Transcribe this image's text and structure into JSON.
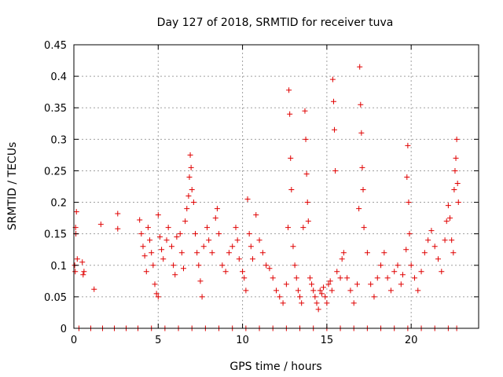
{
  "chart_data": {
    "type": "scatter",
    "title": "Day 127 of 2018, SRMTID for receiver tuva",
    "xlabel": "GPS time / hours",
    "ylabel": "SRMTID / TECUs",
    "xlim": [
      0,
      24
    ],
    "ylim": [
      0,
      0.45
    ],
    "xticks": [
      0,
      5,
      10,
      15,
      20
    ],
    "yticks": [
      0,
      0.05,
      0.1,
      0.15,
      0.2,
      0.25,
      0.3,
      0.35,
      0.4,
      0.45
    ],
    "ytick_labels": [
      "0",
      "0.05",
      "0.1",
      "0.15",
      "0.2",
      "0.25",
      "0.3",
      "0.35",
      "0.4",
      "0.45"
    ],
    "grid": true,
    "marker": "+",
    "color": "#e00000",
    "series": [
      {
        "name": "tuva",
        "points": [
          [
            0.05,
            0.1
          ],
          [
            0.08,
            0.09
          ],
          [
            0.1,
            0.16
          ],
          [
            0.12,
            0.15
          ],
          [
            0.15,
            0.185
          ],
          [
            0.2,
            0.11
          ],
          [
            0.5,
            0.105
          ],
          [
            0.55,
            0.085
          ],
          [
            0.6,
            0.09
          ],
          [
            1.2,
            0.062
          ],
          [
            1.6,
            0.165
          ],
          [
            2.6,
            0.182
          ],
          [
            2.6,
            0.158
          ],
          [
            3.9,
            0.172
          ],
          [
            4.0,
            0.15
          ],
          [
            4.1,
            0.13
          ],
          [
            4.2,
            0.115
          ],
          [
            4.3,
            0.09
          ],
          [
            4.4,
            0.16
          ],
          [
            4.5,
            0.14
          ],
          [
            4.6,
            0.12
          ],
          [
            4.7,
            0.1
          ],
          [
            4.8,
            0.07
          ],
          [
            4.9,
            0.055
          ],
          [
            5.0,
            0.05
          ],
          [
            5.0,
            0.18
          ],
          [
            5.1,
            0.145
          ],
          [
            5.2,
            0.125
          ],
          [
            5.3,
            0.11
          ],
          [
            5.5,
            0.14
          ],
          [
            5.6,
            0.16
          ],
          [
            5.8,
            0.13
          ],
          [
            5.9,
            0.1
          ],
          [
            6.0,
            0.085
          ],
          [
            6.1,
            0.145
          ],
          [
            6.3,
            0.15
          ],
          [
            6.4,
            0.12
          ],
          [
            6.5,
            0.095
          ],
          [
            6.6,
            0.17
          ],
          [
            6.7,
            0.19
          ],
          [
            6.8,
            0.21
          ],
          [
            6.85,
            0.24
          ],
          [
            6.9,
            0.275
          ],
          [
            6.95,
            0.255
          ],
          [
            7.0,
            0.22
          ],
          [
            7.1,
            0.2
          ],
          [
            7.2,
            0.15
          ],
          [
            7.3,
            0.12
          ],
          [
            7.4,
            0.1
          ],
          [
            7.5,
            0.075
          ],
          [
            7.6,
            0.05
          ],
          [
            7.7,
            0.13
          ],
          [
            7.9,
            0.16
          ],
          [
            8.0,
            0.14
          ],
          [
            8.2,
            0.12
          ],
          [
            8.4,
            0.175
          ],
          [
            8.5,
            0.19
          ],
          [
            8.6,
            0.15
          ],
          [
            8.8,
            0.1
          ],
          [
            9.0,
            0.09
          ],
          [
            9.2,
            0.12
          ],
          [
            9.4,
            0.13
          ],
          [
            9.6,
            0.16
          ],
          [
            9.7,
            0.14
          ],
          [
            9.8,
            0.11
          ],
          [
            10.0,
            0.09
          ],
          [
            10.1,
            0.08
          ],
          [
            10.2,
            0.06
          ],
          [
            10.3,
            0.205
          ],
          [
            10.4,
            0.15
          ],
          [
            10.5,
            0.13
          ],
          [
            10.6,
            0.11
          ],
          [
            10.8,
            0.18
          ],
          [
            11.0,
            0.14
          ],
          [
            11.2,
            0.12
          ],
          [
            11.4,
            0.1
          ],
          [
            11.6,
            0.095
          ],
          [
            11.8,
            0.08
          ],
          [
            12.0,
            0.06
          ],
          [
            12.2,
            0.05
          ],
          [
            12.4,
            0.04
          ],
          [
            12.6,
            0.07
          ],
          [
            12.7,
            0.16
          ],
          [
            12.75,
            0.378
          ],
          [
            12.8,
            0.34
          ],
          [
            12.85,
            0.27
          ],
          [
            12.9,
            0.22
          ],
          [
            13.0,
            0.13
          ],
          [
            13.1,
            0.1
          ],
          [
            13.2,
            0.08
          ],
          [
            13.3,
            0.06
          ],
          [
            13.4,
            0.05
          ],
          [
            13.5,
            0.04
          ],
          [
            13.6,
            0.16
          ],
          [
            13.7,
            0.345
          ],
          [
            13.75,
            0.3
          ],
          [
            13.8,
            0.245
          ],
          [
            13.85,
            0.2
          ],
          [
            13.9,
            0.17
          ],
          [
            14.0,
            0.08
          ],
          [
            14.1,
            0.07
          ],
          [
            14.2,
            0.06
          ],
          [
            14.3,
            0.05
          ],
          [
            14.4,
            0.04
          ],
          [
            14.5,
            0.03
          ],
          [
            14.6,
            0.06
          ],
          [
            14.7,
            0.055
          ],
          [
            14.8,
            0.065
          ],
          [
            14.9,
            0.05
          ],
          [
            15.0,
            0.04
          ],
          [
            15.1,
            0.07
          ],
          [
            15.2,
            0.075
          ],
          [
            15.3,
            0.06
          ],
          [
            15.35,
            0.395
          ],
          [
            15.4,
            0.36
          ],
          [
            15.45,
            0.315
          ],
          [
            15.5,
            0.25
          ],
          [
            15.6,
            0.09
          ],
          [
            15.8,
            0.08
          ],
          [
            15.9,
            0.11
          ],
          [
            16.0,
            0.12
          ],
          [
            16.2,
            0.08
          ],
          [
            16.4,
            0.06
          ],
          [
            16.6,
            0.04
          ],
          [
            16.8,
            0.07
          ],
          [
            16.9,
            0.19
          ],
          [
            16.95,
            0.415
          ],
          [
            17.0,
            0.355
          ],
          [
            17.05,
            0.31
          ],
          [
            17.1,
            0.255
          ],
          [
            17.15,
            0.22
          ],
          [
            17.2,
            0.16
          ],
          [
            17.4,
            0.12
          ],
          [
            17.6,
            0.07
          ],
          [
            17.8,
            0.05
          ],
          [
            18.0,
            0.08
          ],
          [
            18.2,
            0.1
          ],
          [
            18.4,
            0.12
          ],
          [
            18.6,
            0.08
          ],
          [
            18.8,
            0.06
          ],
          [
            19.0,
            0.09
          ],
          [
            19.2,
            0.1
          ],
          [
            19.4,
            0.07
          ],
          [
            19.5,
            0.085
          ],
          [
            19.7,
            0.125
          ],
          [
            19.75,
            0.24
          ],
          [
            19.8,
            0.29
          ],
          [
            19.85,
            0.2
          ],
          [
            19.9,
            0.15
          ],
          [
            20.0,
            0.1
          ],
          [
            20.2,
            0.08
          ],
          [
            20.4,
            0.06
          ],
          [
            20.6,
            0.09
          ],
          [
            20.8,
            0.12
          ],
          [
            21.0,
            0.14
          ],
          [
            21.2,
            0.155
          ],
          [
            21.4,
            0.13
          ],
          [
            21.6,
            0.11
          ],
          [
            21.8,
            0.09
          ],
          [
            22.0,
            0.14
          ],
          [
            22.1,
            0.17
          ],
          [
            22.2,
            0.195
          ],
          [
            22.3,
            0.175
          ],
          [
            22.4,
            0.14
          ],
          [
            22.5,
            0.12
          ],
          [
            22.55,
            0.22
          ],
          [
            22.6,
            0.25
          ],
          [
            22.65,
            0.27
          ],
          [
            22.7,
            0.3
          ],
          [
            22.75,
            0.23
          ],
          [
            22.8,
            0.2
          ],
          [
            0.3,
            0
          ],
          [
            1.0,
            0
          ],
          [
            1.7,
            0
          ],
          [
            2.4,
            0
          ],
          [
            3.1,
            0
          ],
          [
            3.8,
            0
          ],
          [
            4.6,
            0
          ],
          [
            5.4,
            0
          ],
          [
            6.2,
            0
          ],
          [
            7.0,
            0
          ],
          [
            7.8,
            0
          ],
          [
            8.6,
            0
          ],
          [
            9.4,
            0
          ],
          [
            10.2,
            0
          ],
          [
            11.0,
            0
          ],
          [
            11.8,
            0
          ],
          [
            12.6,
            0
          ],
          [
            13.4,
            0
          ],
          [
            14.2,
            0
          ],
          [
            15.0,
            0
          ],
          [
            15.8,
            0
          ],
          [
            16.6,
            0
          ],
          [
            17.4,
            0
          ],
          [
            18.2,
            0
          ],
          [
            19.0,
            0
          ],
          [
            19.8,
            0
          ],
          [
            20.6,
            0
          ],
          [
            21.4,
            0
          ],
          [
            22.2,
            0
          ],
          [
            22.7,
            0
          ]
        ]
      }
    ]
  }
}
